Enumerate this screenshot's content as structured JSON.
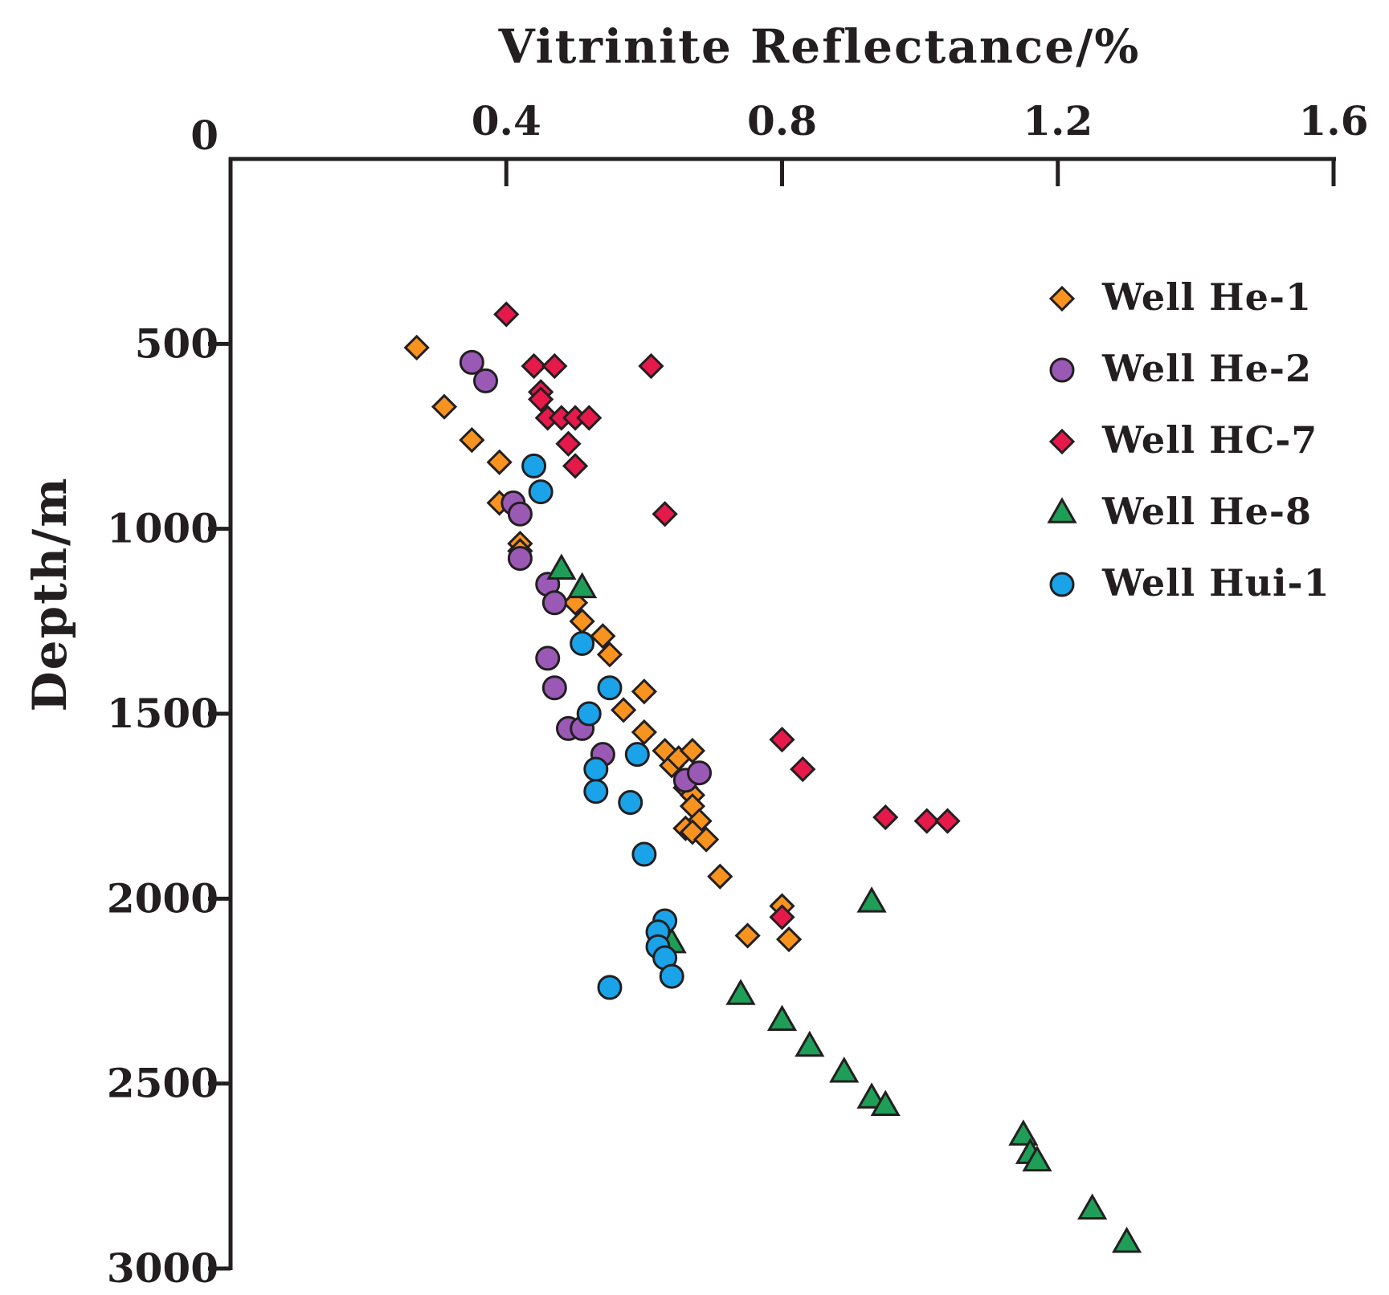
{
  "chart_data": {
    "type": "scatter",
    "title": "",
    "xlabel": "Vitrinite Reflectance/%",
    "ylabel": "Depth/m",
    "xlim": [
      0.0,
      1.6
    ],
    "ylim": [
      0,
      3000
    ],
    "x_ticks": [
      "0.4",
      "0.8",
      "1.2",
      "1.6"
    ],
    "x_tick_values": [
      0.4,
      0.8,
      1.2,
      1.6
    ],
    "y_ticks": [
      "0",
      "500",
      "1000",
      "1500",
      "2000",
      "2500",
      "3000"
    ],
    "y_tick_values": [
      0,
      500,
      1000,
      1500,
      2000,
      2500,
      3000
    ],
    "y_inverted": true,
    "x_axis_position": "top",
    "legend_position": "top-right",
    "series": [
      {
        "name": "Well He-1",
        "marker": "diamond",
        "color": "#f7931e",
        "points": [
          [
            0.27,
            510
          ],
          [
            0.31,
            670
          ],
          [
            0.35,
            760
          ],
          [
            0.39,
            820
          ],
          [
            0.39,
            930
          ],
          [
            0.42,
            1040
          ],
          [
            0.42,
            1060
          ],
          [
            0.5,
            1200
          ],
          [
            0.51,
            1250
          ],
          [
            0.54,
            1290
          ],
          [
            0.55,
            1340
          ],
          [
            0.6,
            1440
          ],
          [
            0.57,
            1490
          ],
          [
            0.6,
            1550
          ],
          [
            0.63,
            1600
          ],
          [
            0.64,
            1640
          ],
          [
            0.65,
            1620
          ],
          [
            0.67,
            1600
          ],
          [
            0.66,
            1700
          ],
          [
            0.67,
            1720
          ],
          [
            0.67,
            1750
          ],
          [
            0.68,
            1790
          ],
          [
            0.66,
            1810
          ],
          [
            0.67,
            1820
          ],
          [
            0.69,
            1840
          ],
          [
            0.71,
            1940
          ],
          [
            0.8,
            2020
          ],
          [
            0.75,
            2100
          ],
          [
            0.81,
            2110
          ]
        ]
      },
      {
        "name": "Well He-2",
        "marker": "circle",
        "color": "#9b59b6",
        "points": [
          [
            0.35,
            550
          ],
          [
            0.37,
            600
          ],
          [
            0.41,
            930
          ],
          [
            0.42,
            960
          ],
          [
            0.42,
            1080
          ],
          [
            0.46,
            1150
          ],
          [
            0.47,
            1200
          ],
          [
            0.46,
            1350
          ],
          [
            0.47,
            1430
          ],
          [
            0.49,
            1540
          ],
          [
            0.51,
            1540
          ],
          [
            0.54,
            1610
          ],
          [
            0.66,
            1680
          ],
          [
            0.68,
            1660
          ]
        ]
      },
      {
        "name": "Well HC-7",
        "marker": "diamond",
        "color": "#e6194b",
        "points": [
          [
            0.4,
            420
          ],
          [
            0.44,
            560
          ],
          [
            0.47,
            560
          ],
          [
            0.61,
            560
          ],
          [
            0.45,
            630
          ],
          [
            0.45,
            650
          ],
          [
            0.46,
            700
          ],
          [
            0.48,
            700
          ],
          [
            0.5,
            700
          ],
          [
            0.52,
            700
          ],
          [
            0.49,
            770
          ],
          [
            0.5,
            830
          ],
          [
            0.63,
            960
          ],
          [
            0.8,
            1570
          ],
          [
            0.83,
            1650
          ],
          [
            0.95,
            1780
          ],
          [
            1.01,
            1790
          ],
          [
            1.04,
            1790
          ],
          [
            0.8,
            2050
          ]
        ]
      },
      {
        "name": "Well He-8",
        "marker": "triangle",
        "color": "#1e9e56",
        "points": [
          [
            0.48,
            1110
          ],
          [
            0.51,
            1160
          ],
          [
            0.64,
            2120
          ],
          [
            0.93,
            2010
          ],
          [
            0.74,
            2260
          ],
          [
            0.8,
            2330
          ],
          [
            0.84,
            2400
          ],
          [
            0.89,
            2470
          ],
          [
            0.93,
            2540
          ],
          [
            0.95,
            2560
          ],
          [
            1.15,
            2640
          ],
          [
            1.16,
            2690
          ],
          [
            1.17,
            2710
          ],
          [
            1.25,
            2840
          ],
          [
            1.3,
            2930
          ]
        ]
      },
      {
        "name": "Well Hui-1",
        "marker": "circle",
        "color": "#1aa3e8",
        "points": [
          [
            0.44,
            830
          ],
          [
            0.45,
            900
          ],
          [
            0.51,
            1310
          ],
          [
            0.55,
            1430
          ],
          [
            0.52,
            1500
          ],
          [
            0.59,
            1610
          ],
          [
            0.53,
            1650
          ],
          [
            0.53,
            1710
          ],
          [
            0.58,
            1740
          ],
          [
            0.6,
            1880
          ],
          [
            0.63,
            2060
          ],
          [
            0.62,
            2090
          ],
          [
            0.62,
            2130
          ],
          [
            0.63,
            2160
          ],
          [
            0.64,
            2210
          ],
          [
            0.55,
            2240
          ]
        ]
      }
    ]
  }
}
